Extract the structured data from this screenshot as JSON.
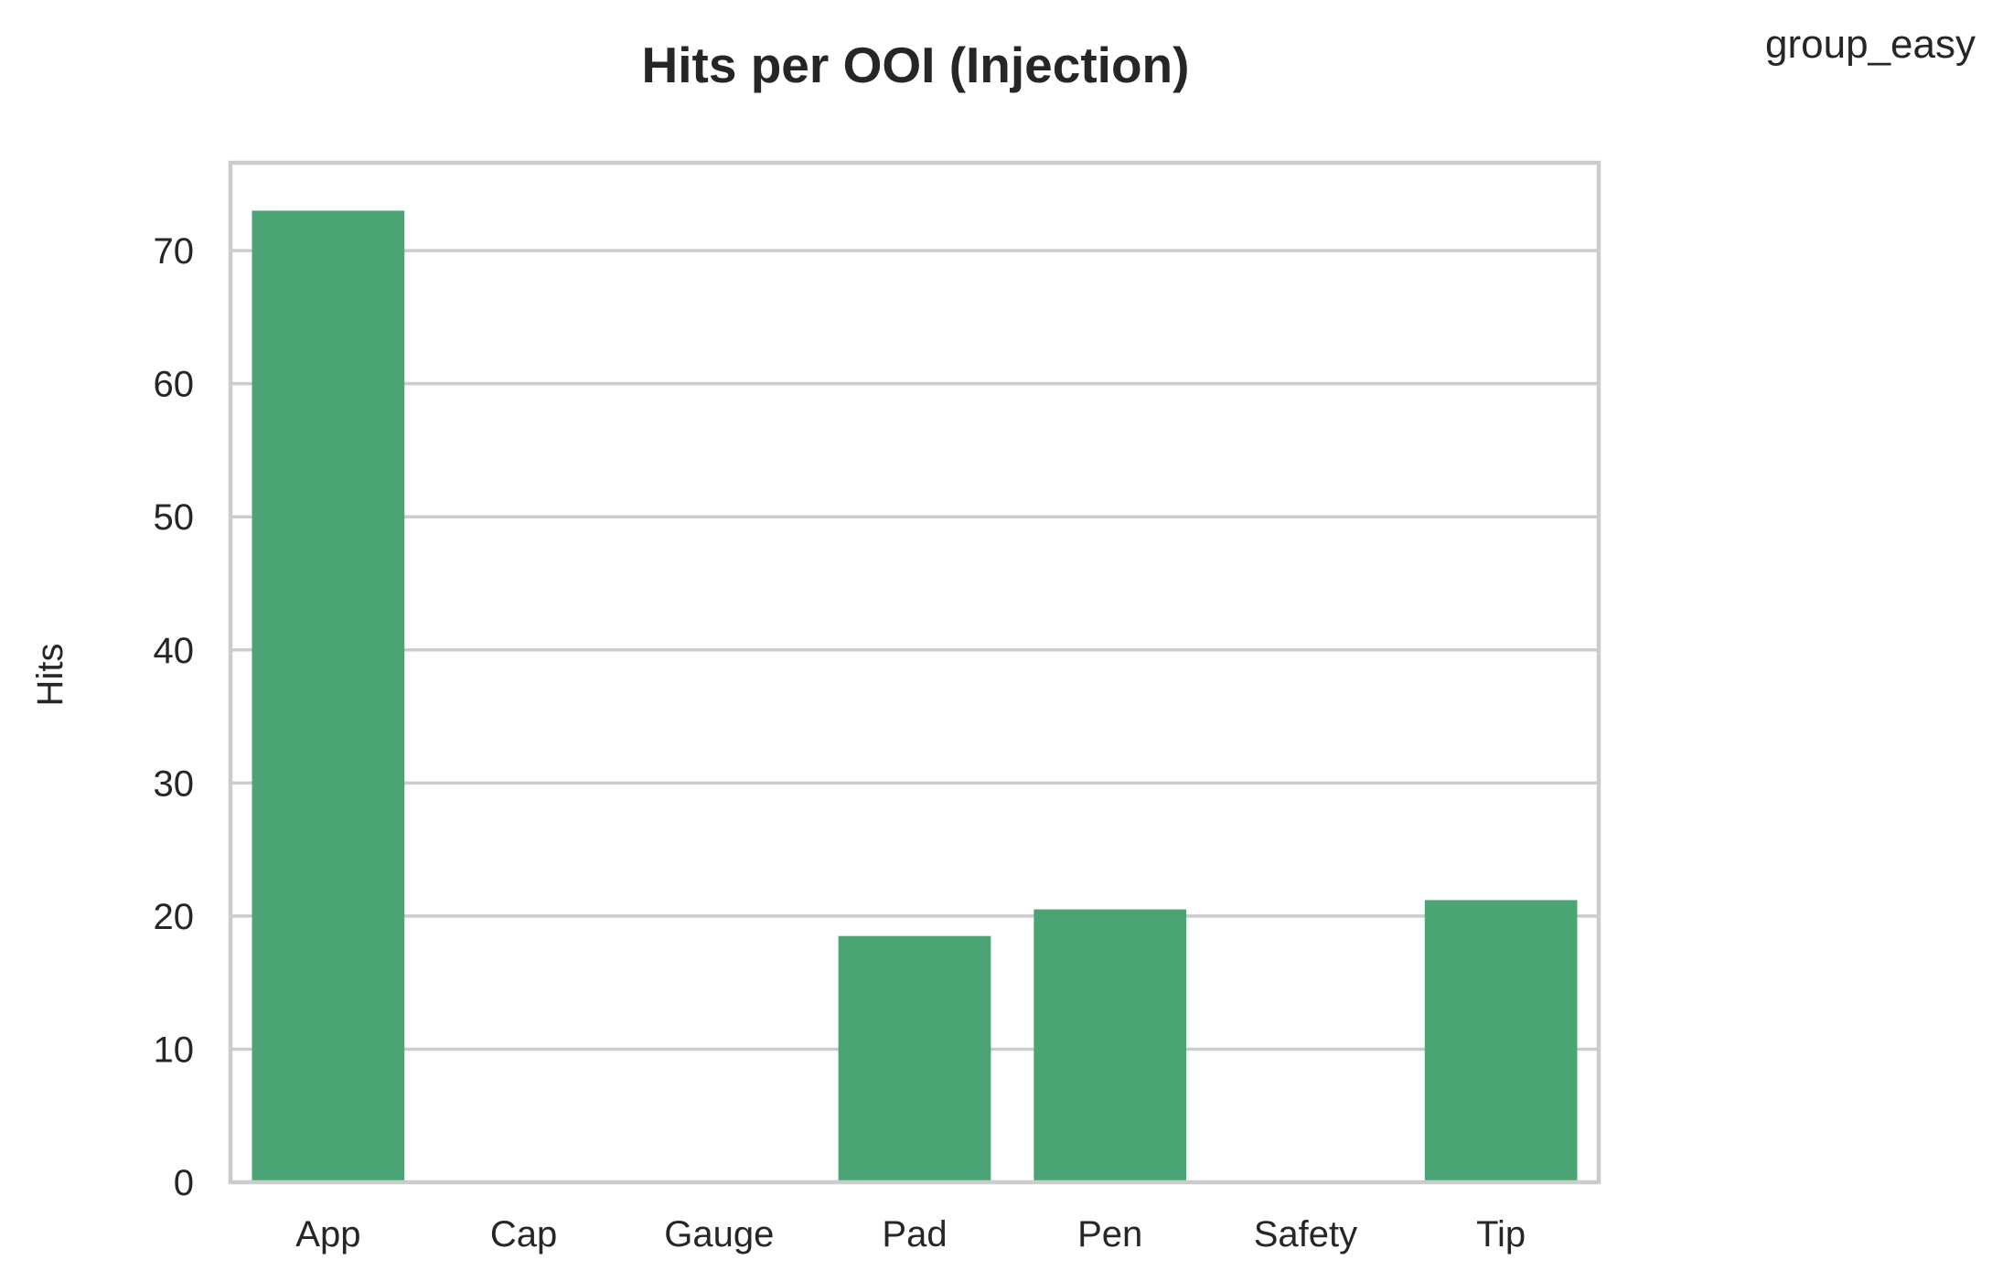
{
  "chart_data": {
    "type": "bar",
    "title": "Hits per OOI (Injection)",
    "annotation": "group_easy",
    "xlabel": "",
    "ylabel": "Hits",
    "categories": [
      "App",
      "Cap",
      "Gauge",
      "Pad",
      "Pen",
      "Safety",
      "Tip"
    ],
    "values": [
      73,
      0,
      0,
      18.5,
      20.5,
      0,
      21.2
    ],
    "ylim": [
      0,
      76.6
    ],
    "yticks": [
      0,
      10,
      20,
      30,
      40,
      50,
      60,
      70
    ],
    "grid": "horizontal",
    "bar_color": "#4ba474",
    "grid_color": "#cccccc",
    "frame_color": "#cccccc",
    "text_color": "#262626"
  }
}
